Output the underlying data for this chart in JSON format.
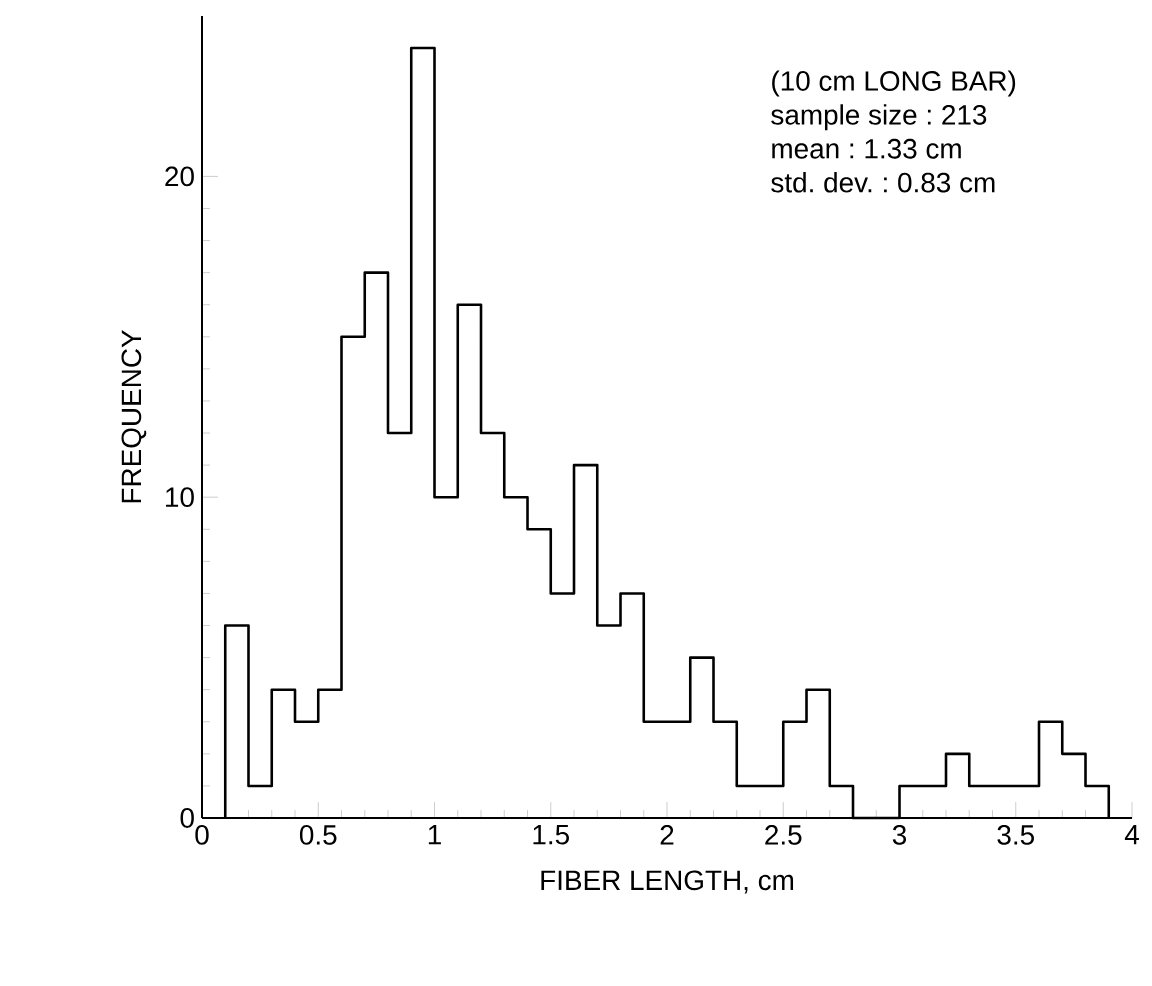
{
  "chart_data": {
    "type": "histogram",
    "xlabel": "FIBER LENGTH, cm",
    "ylabel": "FREQUENCY",
    "bins": [
      0.1,
      0.2,
      0.3,
      0.4,
      0.5,
      0.6,
      0.7,
      0.8,
      0.9,
      1.0,
      1.1,
      1.2,
      1.3,
      1.4,
      1.5,
      1.6,
      1.7,
      1.8,
      1.9,
      2.0,
      2.1,
      2.2,
      2.3,
      2.4,
      2.5,
      2.6,
      2.7,
      2.8,
      2.9,
      3.0,
      3.1,
      3.2,
      3.3,
      3.4,
      3.5,
      3.6,
      3.7,
      3.8,
      3.9
    ],
    "values": [
      6,
      1,
      4,
      3,
      4,
      15,
      17,
      12,
      24,
      10,
      16,
      12,
      10,
      9,
      7,
      11,
      6,
      7,
      3,
      3,
      5,
      3,
      1,
      1,
      3,
      4,
      1,
      0,
      0,
      1,
      1,
      2,
      1,
      1,
      1,
      3,
      2,
      1
    ],
    "color": "#000000",
    "xlim": [
      0,
      4
    ],
    "ylim": [
      0,
      25
    ],
    "xticks": [
      0,
      0.5,
      1,
      1.5,
      2,
      2.5,
      3,
      3.5,
      4
    ],
    "yticks": [
      0,
      10,
      20
    ],
    "annotations": [
      "(10 cm LONG BAR)",
      "sample size : 213",
      "mean : 1.33 cm",
      "std. dev. : 0.83 cm"
    ],
    "grid": false
  }
}
